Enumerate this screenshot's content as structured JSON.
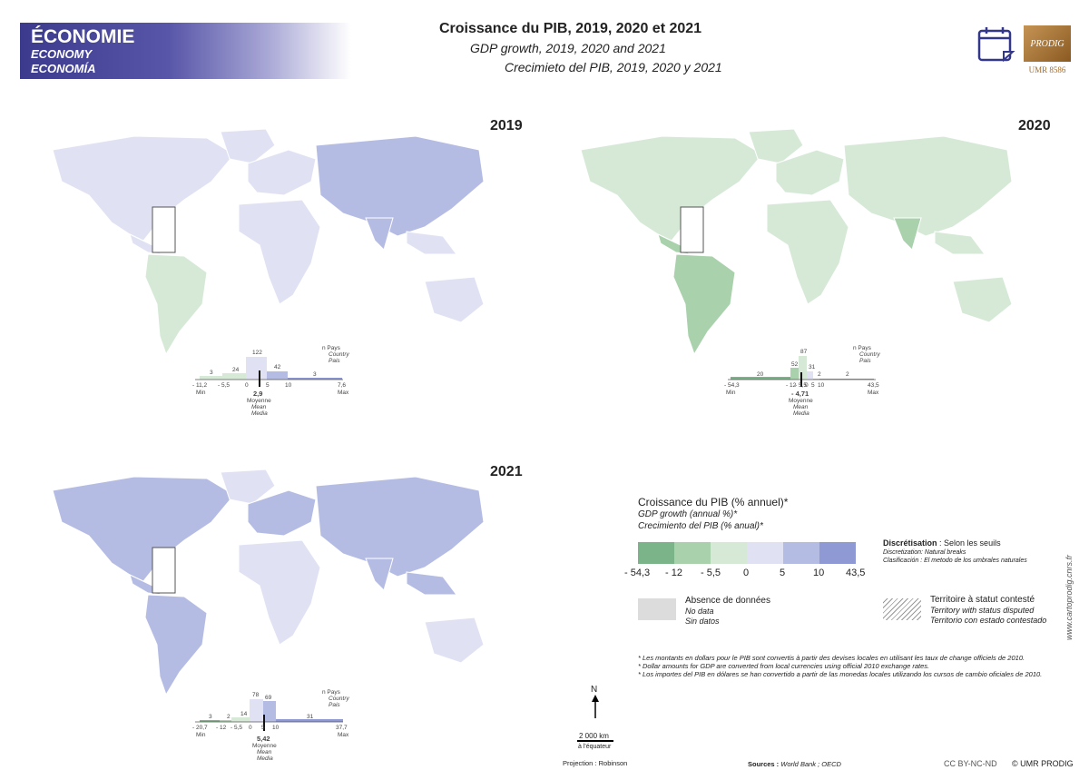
{
  "header": {
    "theme_fr": "ÉCONOMIE",
    "theme_en": "ECONOMY",
    "theme_es": "ECONOMÍA",
    "title_fr": "Croissance du PIB, 2019, 2020 et 2021",
    "title_en": "GDP growth, 2019, 2020 and 2021",
    "title_es": "Crecimieto del PIB, 2019, 2020 y 2021",
    "logo_text": "PRODIG",
    "logo_sub": "UMR 8586"
  },
  "maps": {
    "y2019": {
      "year": "2019"
    },
    "y2020": {
      "year": "2020"
    },
    "y2021": {
      "year": "2021"
    }
  },
  "histograms": {
    "h2019": {
      "counts": [
        "3",
        "24",
        "122",
        "42",
        "3"
      ],
      "ticks": [
        "- 11,2",
        "- 5,5",
        "0",
        "5",
        "10",
        "7,6"
      ],
      "min": "Min",
      "max": "Max",
      "mean": "2,9",
      "mean_fr": "Moyenne",
      "mean_en": "Mean",
      "mean_es": "Media",
      "unit_fr": "n  Pays",
      "unit_en": "Country",
      "unit_es": "Pais"
    },
    "h2020": {
      "counts": [
        "20",
        "52",
        "87",
        "31",
        "2",
        "2"
      ],
      "ticks": [
        "- 54,3",
        "- 12",
        "- 5,5",
        "0",
        "5",
        "10",
        "43,5"
      ],
      "min": "Min",
      "max": "Max",
      "mean": "- 4,71",
      "mean_fr": "Moyenne",
      "mean_en": "Mean",
      "mean_es": "Media",
      "unit_fr": "n  Pays",
      "unit_en": "Country",
      "unit_es": "Pais"
    },
    "h2021": {
      "counts": [
        "3",
        "2",
        "14",
        "78",
        "69",
        "31"
      ],
      "ticks": [
        "- 20,7",
        "- 12",
        "- 5,5",
        "0",
        "5",
        "10",
        "37,7"
      ],
      "min": "Min",
      "max": "Max",
      "mean": "5,42",
      "mean_fr": "Moyenne",
      "mean_en": "Mean",
      "mean_es": "Media",
      "unit_fr": "n  Pays",
      "unit_en": "Country",
      "unit_es": "Pais"
    }
  },
  "legend": {
    "title_fr": "Croissance du PIB (% annuel)*",
    "title_en": "GDP growth (annual %)*",
    "title_es": "Crecimiento del PIB (% anual)*",
    "colors": [
      "#7cb489",
      "#a9d1ac",
      "#d6e9d7",
      "#e0e2f3",
      "#b5bce4",
      "#8f99d3"
    ],
    "breaks": [
      "- 54,3",
      "- 12",
      "- 5,5",
      "0",
      "5",
      "10",
      "43,5"
    ],
    "discret_fr": "Discrétisation",
    "discret_fr_val": " : Selon les seuils",
    "discret_en": "Discretization: Natural breaks",
    "discret_es": "Clasificación : El metodo de los umbrales naturales",
    "nodata_fr": "Absence de données",
    "nodata_en": "No data",
    "nodata_es": "Sin datos",
    "disputed_fr": "Territoire à statut contesté",
    "disputed_en": "Territory with status disputed",
    "disputed_es": "Territorio con estado contestado"
  },
  "notes": {
    "n_fr": "* Les montants en dollars pour le PIB sont convertis à partir des devises locales en utilisant les taux de change officiels de 2010.",
    "n_en": "* Dollar amounts for GDP are converted from local currencies using official 2010 exchange rates.",
    "n_es": "* Los importes del PIB en dólares se han convertido a partir de las monedas locales utilizando los cursos de cambio oficiales de 2010."
  },
  "footer": {
    "north": "N",
    "scale": "2 000 km",
    "scale_note": "à l'équateur",
    "projection": "Projection : Robinson",
    "sources_label": "Sources :",
    "sources": " World Bank ; OECD",
    "license": "CC BY-NC-ND",
    "copyright": "© UMR PRODIG",
    "website": "www.cartoprodig.cnrs.fr"
  }
}
